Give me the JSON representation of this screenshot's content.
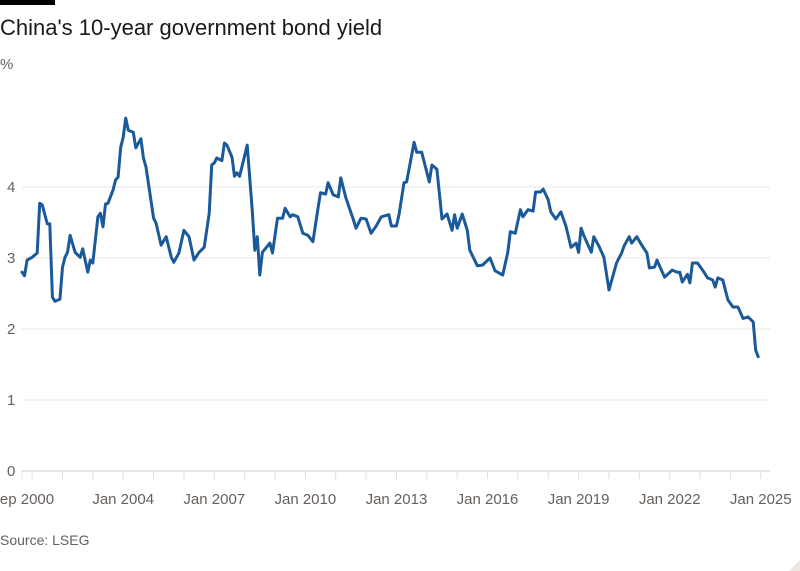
{
  "chart_data": {
    "type": "line",
    "title": "China's 10-year government bond yield",
    "ylabel": "%",
    "source": "Source: LSEG",
    "ylim": [
      0,
      5
    ],
    "yticks": [
      0,
      1,
      2,
      3,
      4
    ],
    "xlim": [
      "2000-09",
      "2024-12"
    ],
    "xticks": [
      {
        "date": "2000-09",
        "label": "Sep 2000"
      },
      {
        "date": "2004-01",
        "label": "Jan 2004"
      },
      {
        "date": "2007-01",
        "label": "Jan 2007"
      },
      {
        "date": "2010-01",
        "label": "Jan 2010"
      },
      {
        "date": "2013-01",
        "label": "Jan 2013"
      },
      {
        "date": "2016-01",
        "label": "Jan 2016"
      },
      {
        "date": "2019-01",
        "label": "Jan 2019"
      },
      {
        "date": "2022-01",
        "label": "Jan 2022"
      },
      {
        "date": "2025-01",
        "label": "Jan 2025"
      }
    ],
    "grid": true,
    "line_color": "#1a5a9a",
    "series": [
      {
        "points": [
          [
            "2000-09",
            2.8
          ],
          [
            "2000-10",
            2.75
          ],
          [
            "2000-11",
            2.97
          ],
          [
            "2001-01",
            3.01
          ],
          [
            "2001-03",
            3.07
          ],
          [
            "2001-04",
            3.77
          ],
          [
            "2001-05",
            3.75
          ],
          [
            "2001-07",
            3.48
          ],
          [
            "2001-08",
            3.48
          ],
          [
            "2001-09",
            2.45
          ],
          [
            "2001-10",
            2.39
          ],
          [
            "2001-12",
            2.42
          ],
          [
            "2002-01",
            2.87
          ],
          [
            "2002-02",
            3.01
          ],
          [
            "2002-03",
            3.08
          ],
          [
            "2002-04",
            3.32
          ],
          [
            "2002-06",
            3.08
          ],
          [
            "2002-08",
            3.01
          ],
          [
            "2002-09",
            3.13
          ],
          [
            "2002-11",
            2.8
          ],
          [
            "2002-12",
            2.97
          ],
          [
            "2003-01",
            2.93
          ],
          [
            "2003-03",
            3.58
          ],
          [
            "2003-04",
            3.63
          ],
          [
            "2003-05",
            3.44
          ],
          [
            "2003-06",
            3.76
          ],
          [
            "2003-07",
            3.77
          ],
          [
            "2003-09",
            3.96
          ],
          [
            "2003-10",
            4.1
          ],
          [
            "2003-11",
            4.14
          ],
          [
            "2003-12",
            4.56
          ],
          [
            "2004-01",
            4.7
          ],
          [
            "2004-02",
            4.97
          ],
          [
            "2004-03",
            4.8
          ],
          [
            "2004-05",
            4.77
          ],
          [
            "2004-06",
            4.55
          ],
          [
            "2004-08",
            4.68
          ],
          [
            "2004-09",
            4.41
          ],
          [
            "2004-10",
            4.28
          ],
          [
            "2005-01",
            3.56
          ],
          [
            "2005-02",
            3.49
          ],
          [
            "2005-04",
            3.18
          ],
          [
            "2005-06",
            3.3
          ],
          [
            "2005-08",
            3.01
          ],
          [
            "2005-09",
            2.94
          ],
          [
            "2005-11",
            3.07
          ],
          [
            "2006-01",
            3.39
          ],
          [
            "2006-03",
            3.3
          ],
          [
            "2006-05",
            2.97
          ],
          [
            "2006-07",
            3.08
          ],
          [
            "2006-09",
            3.15
          ],
          [
            "2006-11",
            3.63
          ],
          [
            "2006-12",
            4.31
          ],
          [
            "2007-01",
            4.34
          ],
          [
            "2007-02",
            4.41
          ],
          [
            "2007-04",
            4.37
          ],
          [
            "2007-05",
            4.62
          ],
          [
            "2007-06",
            4.59
          ],
          [
            "2007-08",
            4.42
          ],
          [
            "2007-09",
            4.15
          ],
          [
            "2007-10",
            4.2
          ],
          [
            "2007-11",
            4.15
          ],
          [
            "2008-02",
            4.59
          ],
          [
            "2008-04",
            3.68
          ],
          [
            "2008-05",
            3.11
          ],
          [
            "2008-06",
            3.3
          ],
          [
            "2008-07",
            2.76
          ],
          [
            "2008-08",
            3.08
          ],
          [
            "2008-11",
            3.21
          ],
          [
            "2008-12",
            3.07
          ],
          [
            "2009-02",
            3.56
          ],
          [
            "2009-04",
            3.56
          ],
          [
            "2009-05",
            3.7
          ],
          [
            "2009-07",
            3.58
          ],
          [
            "2009-08",
            3.61
          ],
          [
            "2009-10",
            3.58
          ],
          [
            "2009-12",
            3.35
          ],
          [
            "2010-02",
            3.32
          ],
          [
            "2010-04",
            3.23
          ],
          [
            "2010-06",
            3.7
          ],
          [
            "2010-07",
            3.92
          ],
          [
            "2010-09",
            3.9
          ],
          [
            "2010-10",
            4.06
          ],
          [
            "2010-12",
            3.89
          ],
          [
            "2011-02",
            3.86
          ],
          [
            "2011-03",
            4.13
          ],
          [
            "2011-05",
            3.85
          ],
          [
            "2011-08",
            3.54
          ],
          [
            "2011-09",
            3.42
          ],
          [
            "2011-11",
            3.56
          ],
          [
            "2012-01",
            3.55
          ],
          [
            "2012-03",
            3.35
          ],
          [
            "2012-05",
            3.45
          ],
          [
            "2012-07",
            3.58
          ],
          [
            "2012-10",
            3.61
          ],
          [
            "2012-11",
            3.45
          ],
          [
            "2013-01",
            3.45
          ],
          [
            "2013-02",
            3.61
          ],
          [
            "2013-04",
            4.06
          ],
          [
            "2013-05",
            4.07
          ],
          [
            "2013-08",
            4.63
          ],
          [
            "2013-09",
            4.49
          ],
          [
            "2013-11",
            4.49
          ],
          [
            "2014-02",
            4.07
          ],
          [
            "2014-03",
            4.31
          ],
          [
            "2014-05",
            4.25
          ],
          [
            "2014-07",
            3.55
          ],
          [
            "2014-09",
            3.62
          ],
          [
            "2014-11",
            3.39
          ],
          [
            "2014-12",
            3.61
          ],
          [
            "2015-01",
            3.42
          ],
          [
            "2015-03",
            3.62
          ],
          [
            "2015-05",
            3.39
          ],
          [
            "2015-06",
            3.11
          ],
          [
            "2015-09",
            2.89
          ],
          [
            "2015-11",
            2.9
          ],
          [
            "2016-02",
            3.0
          ],
          [
            "2016-04",
            2.82
          ],
          [
            "2016-07",
            2.76
          ],
          [
            "2016-09",
            3.08
          ],
          [
            "2016-10",
            3.37
          ],
          [
            "2016-12",
            3.35
          ],
          [
            "2017-02",
            3.68
          ],
          [
            "2017-03",
            3.58
          ],
          [
            "2017-05",
            3.68
          ],
          [
            "2017-07",
            3.66
          ],
          [
            "2017-08",
            3.93
          ],
          [
            "2017-10",
            3.93
          ],
          [
            "2017-11",
            3.97
          ],
          [
            "2018-01",
            3.82
          ],
          [
            "2018-02",
            3.65
          ],
          [
            "2018-04",
            3.55
          ],
          [
            "2018-06",
            3.65
          ],
          [
            "2018-08",
            3.45
          ],
          [
            "2018-10",
            3.15
          ],
          [
            "2018-12",
            3.21
          ],
          [
            "2019-01",
            3.08
          ],
          [
            "2019-02",
            3.42
          ],
          [
            "2019-03",
            3.32
          ],
          [
            "2019-06",
            3.08
          ],
          [
            "2019-07",
            3.3
          ],
          [
            "2019-09",
            3.17
          ],
          [
            "2019-11",
            3.01
          ],
          [
            "2020-01",
            2.55
          ],
          [
            "2020-04",
            2.93
          ],
          [
            "2020-06",
            3.07
          ],
          [
            "2020-07",
            3.17
          ],
          [
            "2020-09",
            3.3
          ],
          [
            "2020-10",
            3.21
          ],
          [
            "2020-12",
            3.3
          ],
          [
            "2021-02",
            3.18
          ],
          [
            "2021-04",
            3.07
          ],
          [
            "2021-05",
            2.86
          ],
          [
            "2021-07",
            2.87
          ],
          [
            "2021-08",
            2.97
          ],
          [
            "2021-11",
            2.73
          ],
          [
            "2022-02",
            2.83
          ],
          [
            "2022-04",
            2.8
          ],
          [
            "2022-05",
            2.8
          ],
          [
            "2022-06",
            2.66
          ],
          [
            "2022-08",
            2.77
          ],
          [
            "2022-09",
            2.65
          ],
          [
            "2022-10",
            2.93
          ],
          [
            "2022-12",
            2.93
          ],
          [
            "2023-02",
            2.83
          ],
          [
            "2023-04",
            2.72
          ],
          [
            "2023-06",
            2.69
          ],
          [
            "2023-07",
            2.59
          ],
          [
            "2023-08",
            2.72
          ],
          [
            "2023-10",
            2.69
          ],
          [
            "2023-12",
            2.41
          ],
          [
            "2024-02",
            2.31
          ],
          [
            "2024-04",
            2.31
          ],
          [
            "2024-06",
            2.15
          ],
          [
            "2024-08",
            2.17
          ],
          [
            "2024-10",
            2.1
          ],
          [
            "2024-11",
            1.7
          ],
          [
            "2024-12",
            1.61
          ]
        ]
      }
    ]
  }
}
